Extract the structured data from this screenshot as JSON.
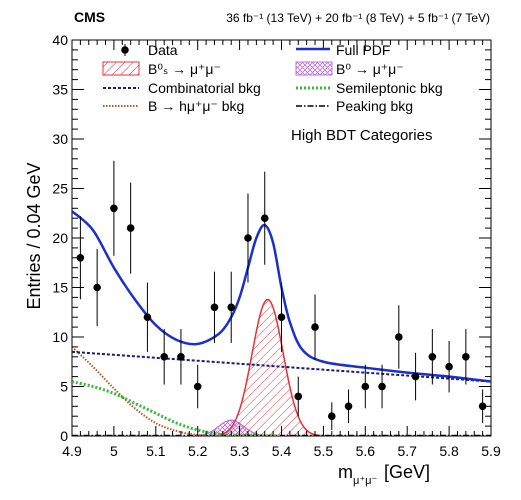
{
  "chart_data": {
    "type": "scatter",
    "experiment": "CMS",
    "luminosity": "36 fb⁻¹ (13 TeV) + 20 fb⁻¹ (8 TeV) + 5 fb⁻¹ (7 TeV)",
    "annotation": "High BDT Categories",
    "xlabel": "m",
    "xlabel_sub": "μ⁺μ⁻",
    "xlabel_unit": "[GeV]",
    "ylabel": "Entries / 0.04 GeV",
    "xlim": [
      4.9,
      5.9
    ],
    "ylim": [
      0,
      40
    ],
    "x_ticks": [
      4.9,
      5.0,
      5.1,
      5.2,
      5.3,
      5.4,
      5.5,
      5.6,
      5.7,
      5.8,
      5.9
    ],
    "x_tick_labels": [
      "4.9",
      "5",
      "5.1",
      "5.2",
      "5.3",
      "5.4",
      "5.5",
      "5.6",
      "5.7",
      "5.8",
      "5.9"
    ],
    "y_ticks": [
      0,
      5,
      10,
      15,
      20,
      25,
      30,
      35,
      40
    ],
    "y_tick_labels": [
      "0",
      "5",
      "10",
      "15",
      "20",
      "25",
      "30",
      "35",
      "40"
    ],
    "legend": {
      "placement": "top",
      "entries": [
        {
          "label": "Data",
          "style": "marker"
        },
        {
          "label": "Full PDF",
          "style": "line",
          "color": "#1a2fcc"
        },
        {
          "label": "B⁰ₛ → μ⁺μ⁻",
          "style": "hatch",
          "color": "#e8303a"
        },
        {
          "label": "B⁰ → μ⁺μ⁻",
          "style": "crosshatch",
          "color": "#c070e0"
        },
        {
          "label": "Combinatorial bkg",
          "style": "dashed",
          "color": "#1a1a7a"
        },
        {
          "label": "Semileptonic bkg",
          "style": "dotted",
          "color": "#33bb33"
        },
        {
          "label": "B → hμ⁺μ⁻ bkg",
          "style": "dotted",
          "color": "#b05a2a"
        },
        {
          "label": "Peaking bkg",
          "style": "dashdot",
          "color": "#000000"
        }
      ]
    },
    "data_points": [
      {
        "x": 4.92,
        "y": 18,
        "err": 4.2
      },
      {
        "x": 4.96,
        "y": 15,
        "err": 3.9
      },
      {
        "x": 5.0,
        "y": 23,
        "err": 4.8
      },
      {
        "x": 5.04,
        "y": 21,
        "err": 4.6
      },
      {
        "x": 5.08,
        "y": 12,
        "err": 3.5
      },
      {
        "x": 5.12,
        "y": 8,
        "err": 2.8
      },
      {
        "x": 5.16,
        "y": 8,
        "err": 2.8
      },
      {
        "x": 5.2,
        "y": 5,
        "err": 2.2
      },
      {
        "x": 5.24,
        "y": 13,
        "err": 3.6
      },
      {
        "x": 5.28,
        "y": 13,
        "err": 3.6
      },
      {
        "x": 5.32,
        "y": 20,
        "err": 4.5
      },
      {
        "x": 5.36,
        "y": 22,
        "err": 4.7
      },
      {
        "x": 5.4,
        "y": 12,
        "err": 3.5
      },
      {
        "x": 5.44,
        "y": 4,
        "err": 2.0
      },
      {
        "x": 5.48,
        "y": 11,
        "err": 3.3
      },
      {
        "x": 5.52,
        "y": 2,
        "err": 1.4
      },
      {
        "x": 5.56,
        "y": 3,
        "err": 1.7
      },
      {
        "x": 5.6,
        "y": 5,
        "err": 2.2
      },
      {
        "x": 5.64,
        "y": 5,
        "err": 2.2
      },
      {
        "x": 5.68,
        "y": 10,
        "err": 3.2
      },
      {
        "x": 5.72,
        "y": 6,
        "err": 2.4
      },
      {
        "x": 5.76,
        "y": 8,
        "err": 2.8
      },
      {
        "x": 5.8,
        "y": 7,
        "err": 2.6
      },
      {
        "x": 5.84,
        "y": 8,
        "err": 2.8
      },
      {
        "x": 5.88,
        "y": 3,
        "err": 1.7
      }
    ],
    "curves": {
      "full_pdf": {
        "x": [
          4.9,
          4.95,
          5.0,
          5.05,
          5.1,
          5.15,
          5.2,
          5.25,
          5.28,
          5.3,
          5.32,
          5.34,
          5.36,
          5.38,
          5.4,
          5.42,
          5.45,
          5.5,
          5.6,
          5.7,
          5.8,
          5.9
        ],
        "y": [
          22.7,
          20.8,
          17.0,
          13.8,
          11.2,
          9.7,
          9.3,
          10.3,
          12.0,
          14.0,
          17.0,
          20.0,
          21.3,
          19.5,
          15.0,
          11.5,
          8.7,
          7.5,
          6.9,
          6.4,
          6.0,
          5.5
        ]
      },
      "combinatorial": {
        "x": [
          4.9,
          5.9
        ],
        "y": [
          8.5,
          5.5
        ]
      },
      "semileptonic": {
        "x": [
          4.9,
          4.95,
          5.0,
          5.05,
          5.1,
          5.15,
          5.2,
          5.25,
          5.3,
          5.4
        ],
        "y": [
          5.5,
          5.0,
          4.3,
          3.3,
          2.3,
          1.3,
          0.6,
          0.2,
          0.05,
          0.0
        ]
      },
      "b_to_hmumu": {
        "x": [
          4.9,
          4.95,
          5.0,
          5.05,
          5.1,
          5.15,
          5.2,
          5.25
        ],
        "y": [
          9.0,
          7.0,
          4.8,
          2.8,
          1.3,
          0.5,
          0.1,
          0.0
        ]
      },
      "peaking": {
        "x": [
          4.9,
          5.9
        ],
        "y": [
          0.05,
          0.05
        ]
      },
      "bs_signal": {
        "mean": 5.367,
        "sigma": 0.037,
        "amplitude": 13.8
      },
      "b0_signal": {
        "mean": 5.28,
        "sigma": 0.03,
        "amplitude": 1.6
      }
    }
  }
}
